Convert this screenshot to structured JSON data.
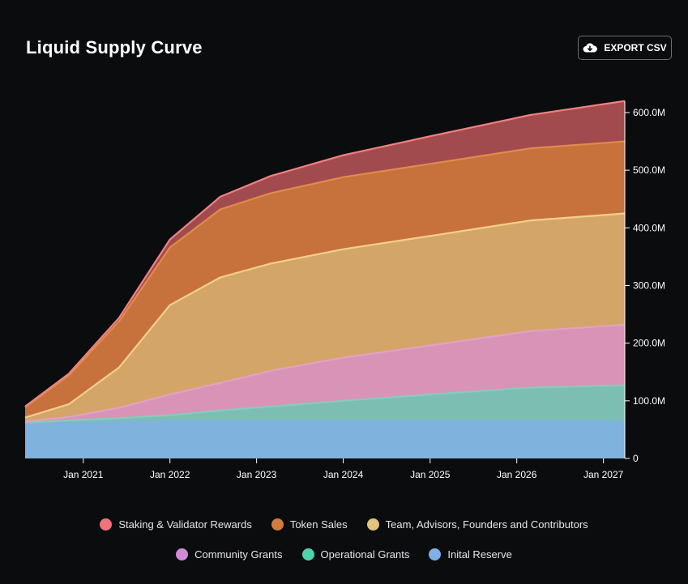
{
  "header": {
    "title": "Liquid Supply Curve",
    "export_label": "EXPORT CSV",
    "export_icon": "cloud-download-icon"
  },
  "chart_data": {
    "type": "area",
    "stacked": true,
    "x": [
      "2020-05",
      "2020-11",
      "2021-06",
      "2022-01",
      "2022-08",
      "2023-03",
      "2024-01",
      "2025-01",
      "2026-03",
      "2027-04"
    ],
    "x_ticks": [
      "Jan 2021",
      "Jan 2022",
      "Jan 2023",
      "Jan 2024",
      "Jan 2025",
      "Jan 2026",
      "Jan 2027"
    ],
    "y_ticks": [
      "0",
      "100.0M",
      "200.0M",
      "300.0M",
      "400.0M",
      "500.0M",
      "600.0M"
    ],
    "ylim": [
      0,
      620
    ],
    "y_unit": "M",
    "y_axis_position": "right",
    "grid": false,
    "legend_position": "bottom",
    "series": [
      {
        "name": "Inital Reserve",
        "color": "#7fb2dc",
        "values": [
          60,
          62,
          64,
          65,
          65,
          65,
          65,
          65,
          65,
          65
        ]
      },
      {
        "name": "Operational Grants",
        "color": "#7cbfb2",
        "values": [
          2,
          4,
          6,
          10,
          18,
          25,
          35,
          46,
          58,
          62
        ]
      },
      {
        "name": "Community Grants",
        "color": "#d893b6",
        "values": [
          2,
          6,
          18,
          36,
          48,
          62,
          75,
          85,
          98,
          105
        ]
      },
      {
        "name": "Team, Advisors, Founders and Contributors",
        "color": "#d4a568",
        "values": [
          7,
          22,
          70,
          155,
          183,
          186,
          188,
          190,
          192,
          193
        ]
      },
      {
        "name": "Token Sales",
        "color": "#c7723d",
        "values": [
          18,
          50,
          80,
          100,
          118,
          122,
          125,
          125,
          125,
          125
        ]
      },
      {
        "name": "Staking & Validator Rewards",
        "color": "#a24b4f",
        "values": [
          1,
          3,
          6,
          14,
          22,
          30,
          38,
          48,
          58,
          70
        ]
      }
    ]
  },
  "legend": {
    "row1": [
      {
        "label": "Staking & Validator Rewards",
        "color": "#f0727a"
      },
      {
        "label": "Token Sales",
        "color": "#cf7c3e"
      },
      {
        "label": "Team, Advisors, Founders and Contributors",
        "color": "#e2c47f"
      }
    ],
    "row2": [
      {
        "label": "Community Grants",
        "color": "#d28ad9"
      },
      {
        "label": "Operational Grants",
        "color": "#4dd3ad"
      },
      {
        "label": "Inital Reserve",
        "color": "#7fb0e6"
      }
    ]
  },
  "line_colors": [
    "#7fb2dc",
    "#86cbbd",
    "#e3a1c4",
    "#f2d08a",
    "#e08b4a",
    "#f08080"
  ]
}
